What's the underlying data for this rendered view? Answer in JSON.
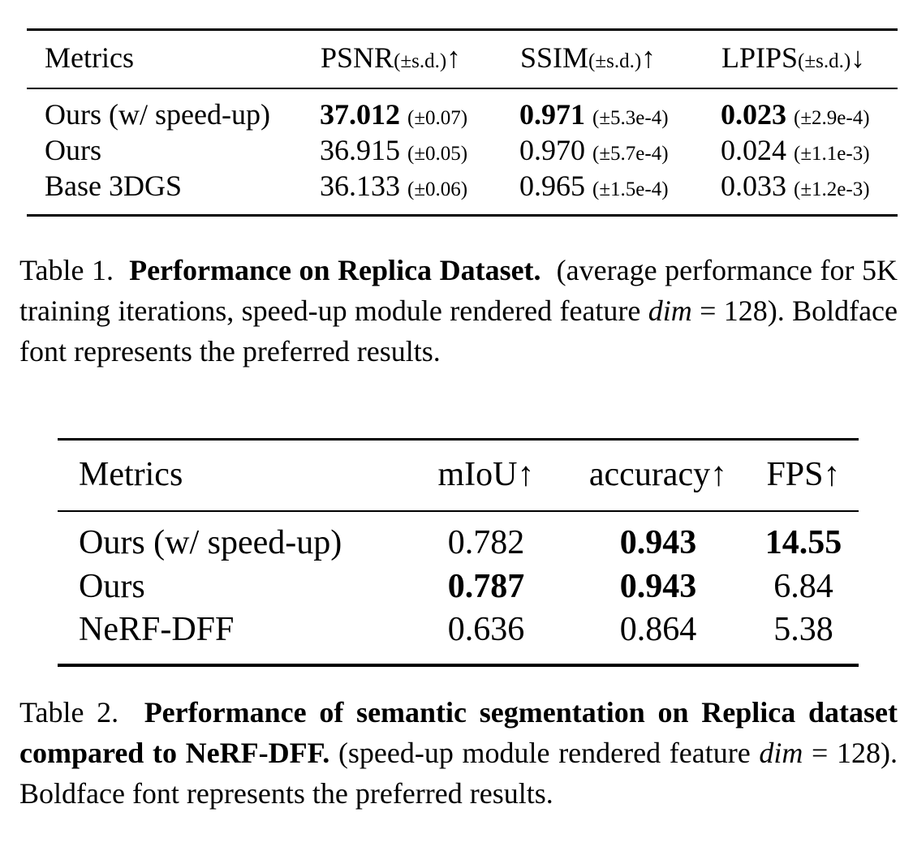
{
  "table1": {
    "headers": {
      "metrics": "Metrics",
      "psnr": {
        "name": "PSNR",
        "sd": "(±s.d.)",
        "arrow": "↑"
      },
      "ssim": {
        "name": "SSIM",
        "sd": "(±s.d.)",
        "arrow": "↑"
      },
      "lpips": {
        "name": "LPIPS",
        "sd": "(±s.d.)",
        "arrow": "↓"
      }
    },
    "rows": [
      {
        "method": "Ours (w/ speed-up)",
        "psnr": "37.012",
        "psnr_sd": "(±0.07)",
        "ssim": "0.971",
        "ssim_sd": "(±5.3e-4)",
        "lpips": "0.023",
        "lpips_sd": "(±2.9e-4)"
      },
      {
        "method": "Ours",
        "psnr": "36.915",
        "psnr_sd": "(±0.05)",
        "ssim": "0.970",
        "ssim_sd": "(±5.7e-4)",
        "lpips": "0.024",
        "lpips_sd": "(±1.1e-3)"
      },
      {
        "method": "Base 3DGS",
        "psnr": "36.133",
        "psnr_sd": "(±0.06)",
        "ssim": "0.965",
        "ssim_sd": "(±1.5e-4)",
        "lpips": "0.033",
        "lpips_sd": "(±1.2e-3)"
      }
    ]
  },
  "caption1": {
    "label": "Table 1.",
    "bold": "Performance on Replica Dataset.",
    "text_a": "(average performance for 5K training iterations, speed-up module rendered feature",
    "math_var": "dim",
    "text_b": "= 128). Boldface font represents the preferred results."
  },
  "table2": {
    "headers": {
      "metrics": "Metrics",
      "miou": "mIoU↑",
      "accuracy": "accuracy↑",
      "fps": "FPS↑"
    },
    "rows": [
      {
        "method": "Ours (w/ speed-up)",
        "miou": "0.782",
        "accuracy": "0.943",
        "fps": "14.55"
      },
      {
        "method": "Ours",
        "miou": "0.787",
        "accuracy": "0.943",
        "fps": "6.84"
      },
      {
        "method": "NeRF-DFF",
        "miou": "0.636",
        "accuracy": "0.864",
        "fps": "5.38"
      }
    ]
  },
  "caption2": {
    "label": "Table 2.",
    "bold": "Performance of semantic segmentation on Replica dataset compared to NeRF-DFF.",
    "text_a": "(speed-up module rendered feature",
    "math_var": "dim",
    "text_b": "= 128). Boldface font represents the preferred results."
  }
}
